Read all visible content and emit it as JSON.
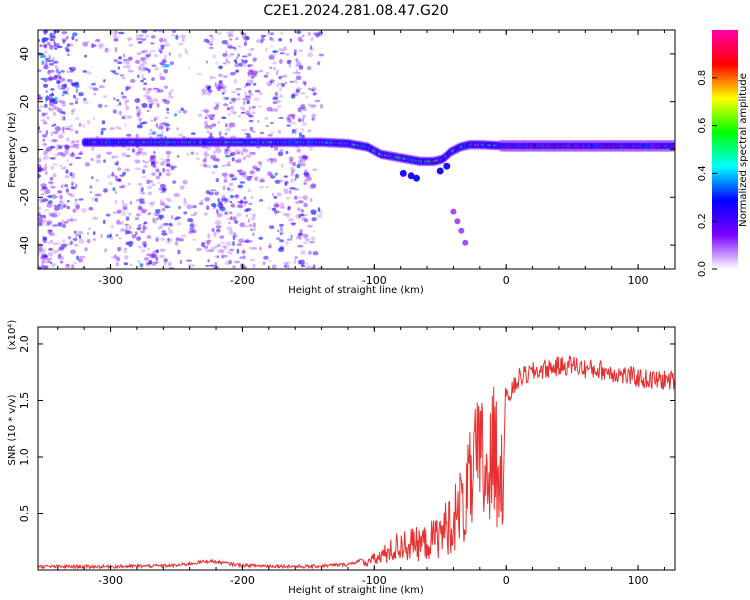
{
  "chart_data": [
    {
      "type": "heatmap",
      "title": "C2E1.2024.281.08.47.G20",
      "xlabel": "Height of straight line (km)",
      "ylabel": "Frequency (Hz)",
      "xlim": [
        -355,
        128
      ],
      "ylim": [
        -50,
        50
      ],
      "x_ticks": [
        -300,
        -200,
        -100,
        0,
        100
      ],
      "x_tick_labels": [
        "-300",
        "-200",
        "-100",
        "0",
        "100"
      ],
      "y_ticks": [
        -40,
        -20,
        0,
        20,
        40
      ],
      "y_tick_labels": [
        "-40",
        "-20",
        "0",
        "20",
        "40"
      ],
      "colorbar": {
        "label": "Normalized spectral amplitude",
        "range": [
          0,
          1
        ],
        "ticks": [
          0.0,
          0.2,
          0.4,
          0.6,
          0.8
        ],
        "tick_labels": [
          "0.0",
          "0.2",
          "0.4",
          "0.6",
          "0.8"
        ],
        "colormap": [
          "#ffffff",
          "#7b00ff",
          "#0000ff",
          "#00ffff",
          "#00ff00",
          "#ffff00",
          "#ff0000",
          "#ff00aa"
        ]
      },
      "ridge": {
        "name": "",
        "points": [
          [
            -320,
            3
          ],
          [
            -280,
            3
          ],
          [
            -240,
            3
          ],
          [
            -200,
            3
          ],
          [
            -160,
            3
          ],
          [
            -140,
            3
          ],
          [
            -120,
            2.5
          ],
          [
            -105,
            1
          ],
          [
            -95,
            -2
          ],
          [
            -85,
            -3
          ],
          [
            -75,
            -4
          ],
          [
            -65,
            -5
          ],
          [
            -55,
            -5
          ],
          [
            -48,
            -4
          ],
          [
            -42,
            -1
          ],
          [
            -35,
            1
          ],
          [
            -28,
            2
          ],
          [
            -20,
            2
          ],
          [
            0,
            1.5
          ],
          [
            30,
            1.5
          ],
          [
            60,
            1.5
          ],
          [
            90,
            1.5
          ],
          [
            128,
            1.5
          ]
        ]
      },
      "noise_region_x": [
        -355,
        -140
      ]
    },
    {
      "type": "line",
      "title": "",
      "xlabel": "Height of straight line (km)",
      "ylabel": "SNR (10 * v/v)",
      "y_multiplier": "(x10⁴)",
      "xlim": [
        -355,
        128
      ],
      "ylim": [
        0,
        2.15
      ],
      "x_ticks": [
        -300,
        -200,
        -100,
        0,
        100
      ],
      "x_tick_labels": [
        "-300",
        "-200",
        "-100",
        "0",
        "100"
      ],
      "y_ticks": [
        0.5,
        1.0,
        1.5,
        2.0
      ],
      "y_tick_labels": [
        "0.5",
        "1.0",
        "1.5",
        "2.0"
      ],
      "series": [
        {
          "name": "",
          "color": "#e83030",
          "x": [
            -355,
            -300,
            -250,
            -225,
            -200,
            -150,
            -120,
            -100,
            -90,
            -80,
            -70,
            -60,
            -50,
            -40,
            -30,
            -25,
            -20,
            -15,
            -10,
            -5,
            0,
            5,
            10,
            20,
            30,
            40,
            50,
            60,
            70,
            80,
            90,
            100,
            110,
            120,
            128
          ],
          "y": [
            0.03,
            0.03,
            0.04,
            0.08,
            0.04,
            0.03,
            0.05,
            0.12,
            0.2,
            0.3,
            0.3,
            0.32,
            0.42,
            0.6,
            0.85,
            1.1,
            1.3,
            1.15,
            1.3,
            1.35,
            1.5,
            1.6,
            1.7,
            1.75,
            1.78,
            1.8,
            1.82,
            1.78,
            1.77,
            1.75,
            1.72,
            1.7,
            1.68,
            1.68,
            1.68
          ]
        }
      ]
    }
  ]
}
